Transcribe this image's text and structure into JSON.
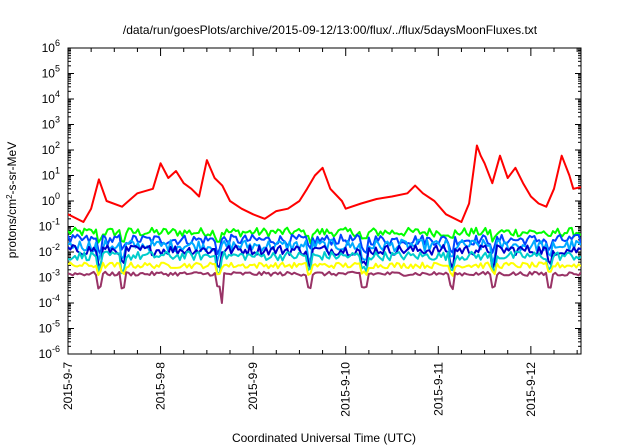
{
  "chart_data": {
    "type": "line",
    "title": "/data/run/goesPlots/archive/2015-09-12/13:00/flux/../flux/5daysMoonFluxes.txt",
    "xlabel": "Coordinated Universal Time (UTC)",
    "ylabel": {
      "prefix": "protons/cm",
      "sup": "2",
      "suffix": "-s-sr-MeV"
    },
    "yscale": "log",
    "ylim": [
      1e-06,
      1000000.0
    ],
    "y_ticks": [
      {
        "exp": "-6"
      },
      {
        "exp": "-5"
      },
      {
        "exp": "-4"
      },
      {
        "exp": "-3"
      },
      {
        "exp": "-2"
      },
      {
        "exp": "-1"
      },
      {
        "exp": "0"
      },
      {
        "exp": "1"
      },
      {
        "exp": "2"
      },
      {
        "exp": "3"
      },
      {
        "exp": "4"
      },
      {
        "exp": "5"
      },
      {
        "exp": "6"
      }
    ],
    "y_tick_base": "10",
    "xlim": [
      "2015-09-07 00:00",
      "2015-09-12 13:00"
    ],
    "x_tick_labels": [
      "2015-9-7",
      "2015-9-8",
      "2015-9-9",
      "2015-9-10",
      "2015-9-11",
      "2015-9-12"
    ],
    "grid": false,
    "legend": "none",
    "series": [
      {
        "color": "#ff0000",
        "points": [
          [
            "2015-09-07 00:00",
            0.3
          ],
          [
            "2015-09-07 04:00",
            0.15
          ],
          [
            "2015-09-07 06:00",
            0.5
          ],
          [
            "2015-09-07 08:00",
            7
          ],
          [
            "2015-09-07 10:00",
            1.0
          ],
          [
            "2015-09-07 14:00",
            0.6
          ],
          [
            "2015-09-07 18:00",
            2
          ],
          [
            "2015-09-07 22:00",
            3
          ],
          [
            "2015-09-08 00:00",
            30
          ],
          [
            "2015-09-08 02:00",
            8
          ],
          [
            "2015-09-08 04:00",
            15
          ],
          [
            "2015-09-08 06:00",
            5
          ],
          [
            "2015-09-08 08:00",
            3
          ],
          [
            "2015-09-08 10:00",
            1.5
          ],
          [
            "2015-09-08 12:00",
            40
          ],
          [
            "2015-09-08 14:00",
            8
          ],
          [
            "2015-09-08 16:00",
            4
          ],
          [
            "2015-09-08 18:00",
            1.0
          ],
          [
            "2015-09-08 21:00",
            0.5
          ],
          [
            "2015-09-09 00:00",
            0.3
          ],
          [
            "2015-09-09 03:00",
            0.2
          ],
          [
            "2015-09-09 06:00",
            0.4
          ],
          [
            "2015-09-09 09:00",
            0.5
          ],
          [
            "2015-09-09 12:00",
            1.0
          ],
          [
            "2015-09-09 14:00",
            3
          ],
          [
            "2015-09-09 16:00",
            10
          ],
          [
            "2015-09-09 18:00",
            20
          ],
          [
            "2015-09-09 20:00",
            3
          ],
          [
            "2015-09-09 23:00",
            1.0
          ],
          [
            "2015-09-10 00:00",
            0.5
          ],
          [
            "2015-09-10 04:00",
            0.8
          ],
          [
            "2015-09-10 08:00",
            1.2
          ],
          [
            "2015-09-10 12:00",
            1.5
          ],
          [
            "2015-09-10 16:00",
            2
          ],
          [
            "2015-09-10 18:00",
            4
          ],
          [
            "2015-09-10 20:00",
            2
          ],
          [
            "2015-09-10 23:00",
            1.0
          ],
          [
            "2015-09-11 02:00",
            0.3
          ],
          [
            "2015-09-11 06:00",
            0.15
          ],
          [
            "2015-09-11 08:00",
            0.8
          ],
          [
            "2015-09-11 10:00",
            150
          ],
          [
            "2015-09-11 11:00",
            60
          ],
          [
            "2015-09-11 12:00",
            30
          ],
          [
            "2015-09-11 14:00",
            5
          ],
          [
            "2015-09-11 16:00",
            60
          ],
          [
            "2015-09-11 18:00",
            8
          ],
          [
            "2015-09-11 20:00",
            20
          ],
          [
            "2015-09-11 22:00",
            5
          ],
          [
            "2015-09-12 00:00",
            1.5
          ],
          [
            "2015-09-12 02:00",
            0.8
          ],
          [
            "2015-09-12 04:00",
            0.6
          ],
          [
            "2015-09-12 06:00",
            3
          ],
          [
            "2015-09-12 08:00",
            60
          ],
          [
            "2015-09-12 10:00",
            10
          ],
          [
            "2015-09-12 11:00",
            3
          ],
          [
            "2015-09-12 13:00",
            3.5
          ]
        ]
      },
      {
        "color": "#00ff00",
        "baseline": 0.06,
        "spread": 1.5,
        "dips": 0.5
      },
      {
        "color": "#0044ff",
        "baseline": 0.03,
        "spread": 1.6,
        "dips": 0.4
      },
      {
        "color": "#00aaff",
        "baseline": 0.018,
        "spread": 1.7,
        "dips": 0.3
      },
      {
        "color": "#0000cc",
        "baseline": 0.012,
        "spread": 1.6,
        "dips": 0.25
      },
      {
        "color": "#00cccc",
        "baseline": 0.007,
        "spread": 1.5,
        "dips": 0.3
      },
      {
        "color": "#ffff00",
        "baseline": 0.003,
        "spread": 1.3,
        "dips": 0.5
      },
      {
        "color": "#993366",
        "baseline": 0.0014,
        "spread": 1.2,
        "dips": 0.3,
        "spike_min": 0.0001
      }
    ]
  }
}
